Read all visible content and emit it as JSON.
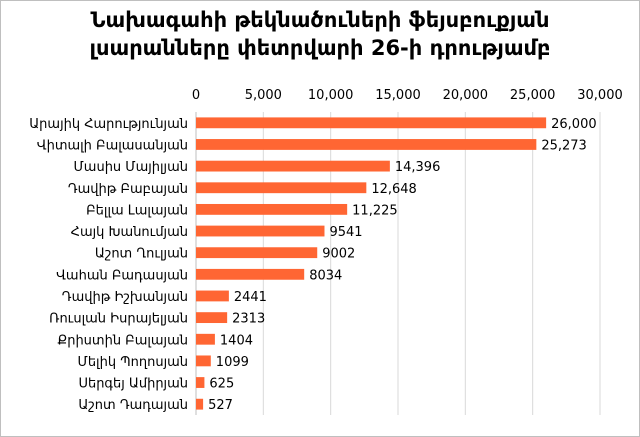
{
  "chart_data": {
    "type": "bar",
    "orientation": "horizontal",
    "title_lines": [
      "Նախագահի թեկնածուների ֆեյսբուքյան",
      "լսարանները փետրվարի 26-ի դրությամբ"
    ],
    "categories": [
      "Արայիկ Հարությունյան",
      "Վիտալի Բալասանյան",
      "Մասիս Մայիլյան",
      "Դավիթ Բաբայան",
      "Բելլա Լալայան",
      "Հայկ Խանումյան",
      "Աշոտ Ղուլյան",
      "Վահան Բադասյան",
      "Դավիթ Իշխանյան",
      "Ռուսլան Իսրայելյան",
      "Քրիստին Բալայան",
      "Մելիկ Պողոսյան",
      "Սերգեյ Ամիրյան",
      "Աշոտ Դադայան"
    ],
    "values": [
      26000,
      25273,
      14396,
      12648,
      11225,
      9541,
      9002,
      8034,
      2441,
      2313,
      1404,
      1099,
      625,
      527
    ],
    "value_labels": [
      "26,000",
      "25,273",
      "14,396",
      "12,648",
      "11,225",
      "9541",
      "9002",
      "8034",
      "2441",
      "2313",
      "1404",
      "1099",
      "625",
      "527"
    ],
    "xlim": [
      0,
      30000
    ],
    "ticks": [
      0,
      5000,
      10000,
      15000,
      20000,
      25000,
      30000
    ],
    "tick_labels": [
      "0",
      "5,000",
      "10,000",
      "15,000",
      "20,000",
      "25,000",
      "30,000"
    ],
    "axis_position": "top",
    "grid": true,
    "legend": false,
    "bar_color": "#ff6633",
    "grid_color": "#d9d9d9"
  }
}
